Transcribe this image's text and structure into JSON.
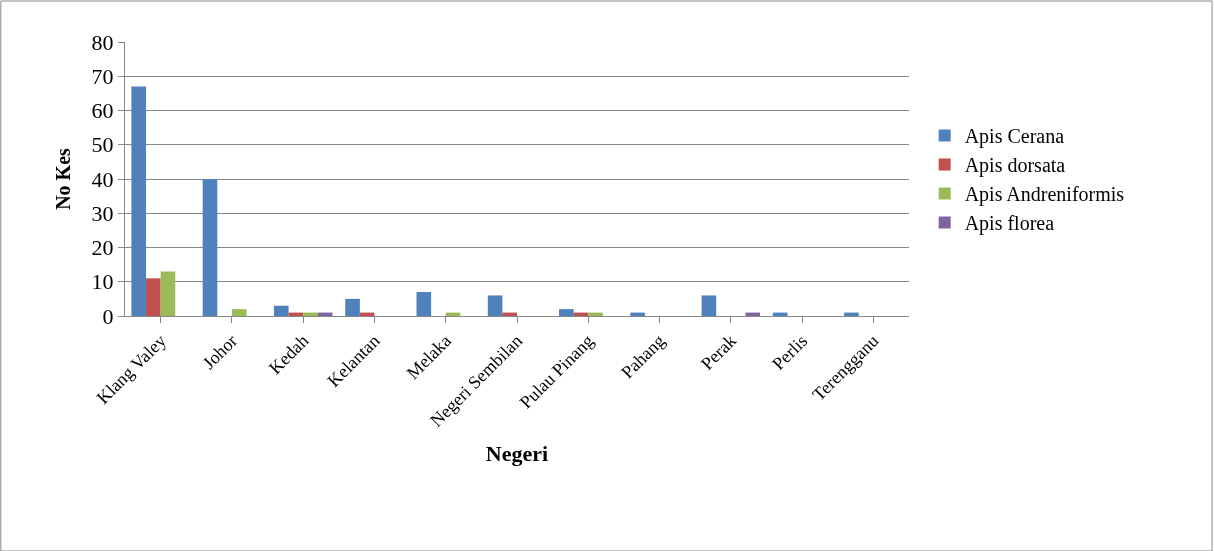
{
  "chart_data": {
    "type": "bar",
    "xlabel": "Negeri",
    "ylabel": "No Kes",
    "categories": [
      "Klang Valey",
      "Johor",
      "Kedah",
      "Kelantan",
      "Melaka",
      "Negeri Sembilan",
      "Pulau Pinang",
      "Pahang",
      "Perak",
      "Perlis",
      "Terengganu"
    ],
    "series": [
      {
        "name": "Apis Cerana",
        "color": "#4f81bd",
        "values": [
          67,
          40,
          3,
          5,
          7,
          6,
          2,
          1,
          6,
          1,
          1
        ]
      },
      {
        "name": "Apis dorsata",
        "color": "#c0504d",
        "values": [
          11,
          0,
          1,
          1,
          0,
          1,
          1,
          0,
          0,
          0,
          0
        ]
      },
      {
        "name": "Apis Andreniformis",
        "color": "#9bbb59",
        "values": [
          13,
          2,
          1,
          0,
          1,
          0,
          1,
          0,
          0,
          0,
          0
        ]
      },
      {
        "name": "Apis florea",
        "color": "#8064a2",
        "values": [
          0,
          0,
          1,
          0,
          0,
          0,
          0,
          0,
          1,
          0,
          0
        ]
      }
    ],
    "ylim": [
      0,
      80
    ],
    "yticks": [
      0,
      10,
      20,
      30,
      40,
      50,
      60,
      70,
      80
    ],
    "grid": "y",
    "legend": "right"
  }
}
